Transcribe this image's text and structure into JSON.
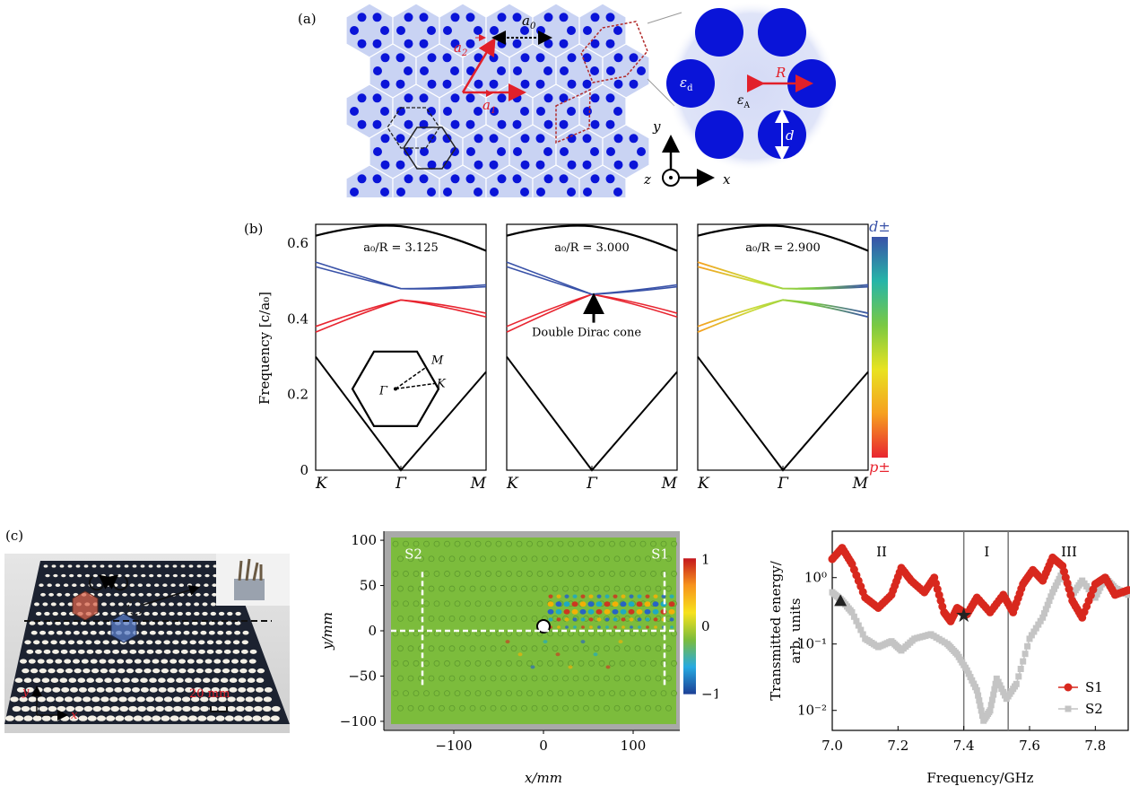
{
  "panels": {
    "a": {
      "label": "(a)",
      "a0": "a",
      "a0_sub": "0",
      "a1": "a",
      "a1_sub": "1",
      "a2": "a",
      "a2_sub": "2",
      "R": "R",
      "d": "d",
      "eps_d": "ε",
      "eps_d_sub": "d",
      "eps_A": "ε",
      "eps_A_sub": "A",
      "axis_x": "x",
      "axis_y": "y",
      "axis_z": "z",
      "colors": {
        "lattice": "#c9d3f3",
        "rod": "#0a14d8",
        "vector": "#e2202a"
      }
    },
    "b": {
      "label": "(b)",
      "ylabel": "Frequency [c/a₀]",
      "yticks": [
        "0",
        "0.2",
        "0.4",
        "0.6"
      ],
      "xticks": [
        "K",
        "Γ",
        "M"
      ],
      "bz": {
        "M": "M",
        "K": "K",
        "G": "Γ"
      },
      "annotation": "Double Dirac cone",
      "colorbar_top": "d±",
      "colorbar_bottom": "p±",
      "subplots": [
        {
          "ratio": "a₀/R = 3.125"
        },
        {
          "ratio": "a₀/R = 3.000"
        },
        {
          "ratio": "a₀/R = 2.900"
        }
      ],
      "colors": {
        "band_d": "#3952a8",
        "band_p": "#e82530",
        "band_other": "#000000"
      }
    },
    "c": {
      "label": "(c)",
      "photo": {
        "scale_text": "20 mm",
        "axis_x": "x",
        "axis_y": "y"
      },
      "field": {
        "xlabel": "x/mm",
        "ylabel": "y/mm",
        "xticks": [
          "−100",
          "0",
          "100"
        ],
        "yticks": [
          "−100",
          "−50",
          "0",
          "50",
          "100"
        ],
        "s1": "S1",
        "s2": "S2",
        "colorbar_ticks": [
          "1",
          "0",
          "−1"
        ]
      },
      "transmission": {
        "ylabel_line1": "Transmitted energy/",
        "ylabel_line2": "arb. units",
        "xlabel": "Frequency/GHz",
        "xticks": [
          "7.0",
          "7.2",
          "7.4",
          "7.6",
          "7.8"
        ],
        "yticks": [
          "10⁰",
          "10⁻¹",
          "10⁻²"
        ],
        "regions": [
          "II",
          "I",
          "III"
        ],
        "legend": [
          "S1",
          "S2"
        ],
        "colors": {
          "S1": "#d8281e",
          "S2": "#c4c4c4"
        }
      }
    }
  },
  "chart_data": [
    {
      "type": "line",
      "title": "a₀/R = 3.125",
      "ylabel": "Frequency [c/a₀]",
      "xticks": [
        "K",
        "Γ",
        "M"
      ],
      "ylim": [
        0,
        0.65
      ],
      "series": [
        {
          "x": [
            0,
            0.5,
            1
          ],
          "values": [
            0.3,
            0.0,
            0.26
          ]
        },
        {
          "x": [
            0,
            0.5,
            1
          ],
          "values": [
            0.38,
            0.45,
            0.405
          ]
        },
        {
          "x": [
            0,
            0.5,
            1
          ],
          "values": [
            0.55,
            0.48,
            0.485
          ]
        },
        {
          "x": [
            0,
            0.5,
            1
          ],
          "values": [
            0.62,
            0.645,
            0.58
          ]
        }
      ]
    },
    {
      "type": "line",
      "title": "a₀/R = 3.000",
      "ylabel": "Frequency [c/a₀]",
      "xticks": [
        "K",
        "Γ",
        "M"
      ],
      "ylim": [
        0,
        0.65
      ],
      "series": [
        {
          "x": [
            0,
            0.5,
            1
          ],
          "values": [
            0.3,
            0.0,
            0.26
          ]
        },
        {
          "x": [
            0,
            0.5,
            1
          ],
          "values": [
            0.38,
            0.465,
            0.405
          ]
        },
        {
          "x": [
            0,
            0.5,
            1
          ],
          "values": [
            0.55,
            0.465,
            0.485
          ]
        },
        {
          "x": [
            0,
            0.5,
            1
          ],
          "values": [
            0.62,
            0.645,
            0.58
          ]
        }
      ]
    },
    {
      "type": "line",
      "title": "a₀/R = 2.900",
      "ylabel": "Frequency [c/a₀]",
      "xticks": [
        "K",
        "Γ",
        "M"
      ],
      "ylim": [
        0,
        0.65
      ],
      "series": [
        {
          "x": [
            0,
            0.5,
            1
          ],
          "values": [
            0.3,
            0.0,
            0.26
          ]
        },
        {
          "x": [
            0,
            0.5,
            1
          ],
          "values": [
            0.38,
            0.45,
            0.405
          ]
        },
        {
          "x": [
            0,
            0.5,
            1
          ],
          "values": [
            0.55,
            0.48,
            0.485
          ]
        },
        {
          "x": [
            0,
            0.5,
            1
          ],
          "values": [
            0.62,
            0.645,
            0.58
          ]
        }
      ]
    },
    {
      "type": "line",
      "xlabel": "Frequency/GHz",
      "ylabel": "Transmitted energy/ arb. units",
      "y_scale": "log",
      "xlim": [
        7.0,
        7.9
      ],
      "ylim": [
        0.005,
        5
      ],
      "legend": "bottom-right",
      "series": [
        {
          "name": "S1",
          "x": [
            7.0,
            7.03,
            7.06,
            7.1,
            7.14,
            7.18,
            7.21,
            7.24,
            7.28,
            7.31,
            7.34,
            7.36,
            7.38,
            7.41,
            7.44,
            7.48,
            7.52,
            7.55,
            7.58,
            7.61,
            7.64,
            7.67,
            7.7,
            7.73,
            7.76,
            7.8,
            7.83,
            7.86,
            7.9
          ],
          "values": [
            1.9,
            2.8,
            1.6,
            0.5,
            0.35,
            0.55,
            1.4,
            0.9,
            0.6,
            1.0,
            0.3,
            0.22,
            0.35,
            0.28,
            0.5,
            0.3,
            0.55,
            0.3,
            0.8,
            1.3,
            0.9,
            2.0,
            1.5,
            0.45,
            0.25,
            0.8,
            1.0,
            0.55,
            0.65
          ]
        },
        {
          "name": "S2",
          "x": [
            7.0,
            7.03,
            7.06,
            7.1,
            7.14,
            7.18,
            7.21,
            7.25,
            7.3,
            7.35,
            7.38,
            7.41,
            7.44,
            7.46,
            7.48,
            7.5,
            7.53,
            7.56,
            7.6,
            7.64,
            7.67,
            7.7,
            7.73,
            7.76,
            7.8,
            7.83,
            7.86,
            7.9
          ],
          "values": [
            0.6,
            0.45,
            0.3,
            0.12,
            0.09,
            0.11,
            0.08,
            0.12,
            0.14,
            0.1,
            0.07,
            0.04,
            0.02,
            0.007,
            0.01,
            0.03,
            0.015,
            0.025,
            0.12,
            0.25,
            0.6,
            1.2,
            0.55,
            0.9,
            0.5,
            1.0,
            0.7,
            0.55
          ]
        }
      ]
    }
  ]
}
